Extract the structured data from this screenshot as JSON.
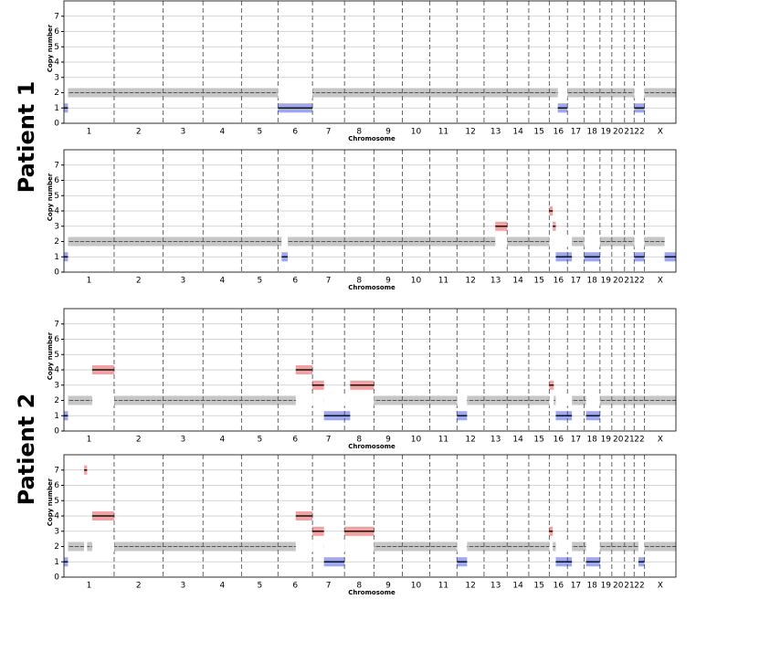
{
  "row_labels": [
    "Patient 1",
    "Patient 2"
  ],
  "chart_data": [
    {
      "type": "segment",
      "row": 0,
      "ylabel": "Copy number",
      "xlabel": "Chromosome",
      "categories": [
        "1",
        "2",
        "3",
        "4",
        "5",
        "6",
        "7",
        "8",
        "9",
        "10",
        "11",
        "12",
        "13",
        "14",
        "15",
        "16",
        "17",
        "18",
        "19",
        "20",
        "21",
        "22",
        "X"
      ],
      "boundaries": [
        249,
        492,
        690,
        881,
        1062,
        1233,
        1392,
        1538,
        1679,
        1815,
        1950,
        2084,
        2199,
        2306,
        2408,
        2498,
        2581,
        2659,
        2718,
        2781,
        2829,
        2880
      ],
      "xlim": [
        0,
        3036
      ],
      "ylim": [
        0,
        8
      ],
      "yticks": [
        0,
        1,
        2,
        3,
        4,
        5,
        6,
        7
      ],
      "grid": true,
      "reference_line": 2,
      "colors": {
        "loss": "#2b3fd6",
        "neutral": "#333333",
        "gain": "#e03030"
      },
      "segments": [
        {
          "start": 0,
          "end": 20,
          "cn": 1
        },
        {
          "start": 1062,
          "end": 1233,
          "cn": 1
        },
        {
          "start": 2450,
          "end": 2498,
          "cn": 1
        },
        {
          "start": 2829,
          "end": 2880,
          "cn": 1
        }
      ]
    },
    {
      "type": "segment",
      "row": 0,
      "ylabel": "Copy number",
      "xlabel": "Chromosome",
      "categories": [
        "1",
        "2",
        "3",
        "4",
        "5",
        "6",
        "7",
        "8",
        "9",
        "10",
        "11",
        "12",
        "13",
        "14",
        "15",
        "16",
        "17",
        "18",
        "19",
        "20",
        "21",
        "22",
        "X"
      ],
      "boundaries": [
        249,
        492,
        690,
        881,
        1062,
        1233,
        1392,
        1538,
        1679,
        1815,
        1950,
        2084,
        2199,
        2306,
        2408,
        2498,
        2581,
        2659,
        2718,
        2781,
        2829,
        2880
      ],
      "xlim": [
        0,
        3036
      ],
      "ylim": [
        0,
        8
      ],
      "yticks": [
        0,
        1,
        2,
        3,
        4,
        5,
        6,
        7
      ],
      "grid": true,
      "reference_line": 2,
      "colors": {
        "loss": "#2b3fd6",
        "neutral": "#333333",
        "gain": "#e03030"
      },
      "segments": [
        {
          "start": 0,
          "end": 20,
          "cn": 1
        },
        {
          "start": 1080,
          "end": 1110,
          "cn": 1
        },
        {
          "start": 2140,
          "end": 2199,
          "cn": 3
        },
        {
          "start": 2408,
          "end": 2425,
          "cn": 4
        },
        {
          "start": 2425,
          "end": 2440,
          "cn": 3
        },
        {
          "start": 2440,
          "end": 2520,
          "cn": 1
        },
        {
          "start": 2581,
          "end": 2659,
          "cn": 1
        },
        {
          "start": 2829,
          "end": 2880,
          "cn": 1
        },
        {
          "start": 2980,
          "end": 3036,
          "cn": 1
        }
      ]
    },
    {
      "type": "segment",
      "row": 1,
      "ylabel": "Copy number",
      "xlabel": "Chromosome",
      "categories": [
        "1",
        "2",
        "3",
        "4",
        "5",
        "6",
        "7",
        "8",
        "9",
        "10",
        "11",
        "12",
        "13",
        "14",
        "15",
        "16",
        "17",
        "18",
        "19",
        "20",
        "21",
        "22",
        "X"
      ],
      "boundaries": [
        249,
        492,
        690,
        881,
        1062,
        1233,
        1392,
        1538,
        1679,
        1815,
        1950,
        2084,
        2199,
        2306,
        2408,
        2498,
        2581,
        2659,
        2718,
        2781,
        2829,
        2880
      ],
      "xlim": [
        0,
        3036
      ],
      "ylim": [
        0,
        8
      ],
      "yticks": [
        0,
        1,
        2,
        3,
        4,
        5,
        6,
        7
      ],
      "grid": true,
      "reference_line": 2,
      "colors": {
        "loss": "#2b3fd6",
        "neutral": "#333333",
        "gain": "#e03030"
      },
      "segments": [
        {
          "start": 0,
          "end": 20,
          "cn": 1
        },
        {
          "start": 140,
          "end": 249,
          "cn": 4
        },
        {
          "start": 1150,
          "end": 1233,
          "cn": 4
        },
        {
          "start": 1233,
          "end": 1290,
          "cn": 3
        },
        {
          "start": 1290,
          "end": 1420,
          "cn": 1
        },
        {
          "start": 1420,
          "end": 1538,
          "cn": 3
        },
        {
          "start": 1950,
          "end": 2000,
          "cn": 1
        },
        {
          "start": 2408,
          "end": 2430,
          "cn": 3
        },
        {
          "start": 2440,
          "end": 2520,
          "cn": 1
        },
        {
          "start": 2590,
          "end": 2659,
          "cn": 1
        }
      ]
    },
    {
      "type": "segment",
      "row": 1,
      "ylabel": "Copy number",
      "xlabel": "Chromosome",
      "categories": [
        "1",
        "2",
        "3",
        "4",
        "5",
        "6",
        "7",
        "8",
        "9",
        "10",
        "11",
        "12",
        "13",
        "14",
        "15",
        "16",
        "17",
        "18",
        "19",
        "20",
        "21",
        "22",
        "X"
      ],
      "boundaries": [
        249,
        492,
        690,
        881,
        1062,
        1233,
        1392,
        1538,
        1679,
        1815,
        1950,
        2084,
        2199,
        2306,
        2408,
        2498,
        2581,
        2659,
        2718,
        2781,
        2829,
        2880
      ],
      "xlim": [
        0,
        3036
      ],
      "ylim": [
        0,
        8
      ],
      "yticks": [
        0,
        1,
        2,
        3,
        4,
        5,
        6,
        7
      ],
      "grid": true,
      "reference_line": 2,
      "colors": {
        "loss": "#2b3fd6",
        "neutral": "#333333",
        "gain": "#e03030"
      },
      "segments": [
        {
          "start": 0,
          "end": 20,
          "cn": 1
        },
        {
          "start": 100,
          "end": 115,
          "cn": 7
        },
        {
          "start": 140,
          "end": 249,
          "cn": 4
        },
        {
          "start": 1150,
          "end": 1233,
          "cn": 4
        },
        {
          "start": 1233,
          "end": 1290,
          "cn": 3
        },
        {
          "start": 1290,
          "end": 1392,
          "cn": 1
        },
        {
          "start": 1392,
          "end": 1538,
          "cn": 3
        },
        {
          "start": 1950,
          "end": 2000,
          "cn": 1
        },
        {
          "start": 2408,
          "end": 2425,
          "cn": 3
        },
        {
          "start": 2440,
          "end": 2520,
          "cn": 1
        },
        {
          "start": 2590,
          "end": 2659,
          "cn": 1
        },
        {
          "start": 2850,
          "end": 2880,
          "cn": 1
        }
      ]
    }
  ]
}
